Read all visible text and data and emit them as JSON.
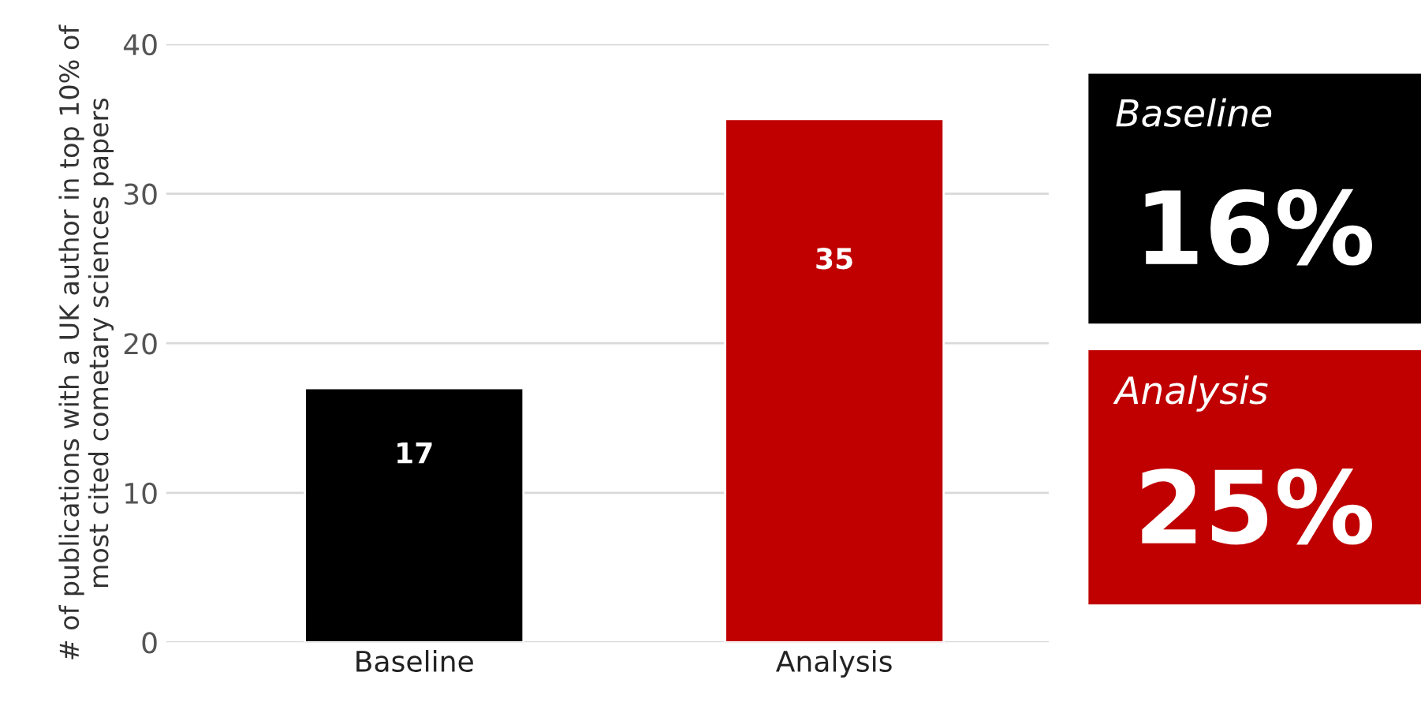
{
  "chart_data": [
    {
      "type": "bar",
      "categories": [
        "Baseline",
        "Analysis"
      ],
      "values": [
        17,
        35
      ],
      "colors": [
        "#000000",
        "#c00000"
      ],
      "ylabel": "# of publications with a UK author in top 10% of most cited cometary sciences papers",
      "ylim": [
        0,
        40
      ],
      "yticks": [
        0,
        10,
        20,
        30,
        40
      ],
      "grid": "y",
      "data_labels": true
    },
    {
      "type": "other",
      "categories": [
        "Baseline",
        "Analysis"
      ],
      "value_labels": [
        "16%",
        "25%"
      ],
      "colors": [
        "#000000",
        "#c00000"
      ]
    }
  ]
}
